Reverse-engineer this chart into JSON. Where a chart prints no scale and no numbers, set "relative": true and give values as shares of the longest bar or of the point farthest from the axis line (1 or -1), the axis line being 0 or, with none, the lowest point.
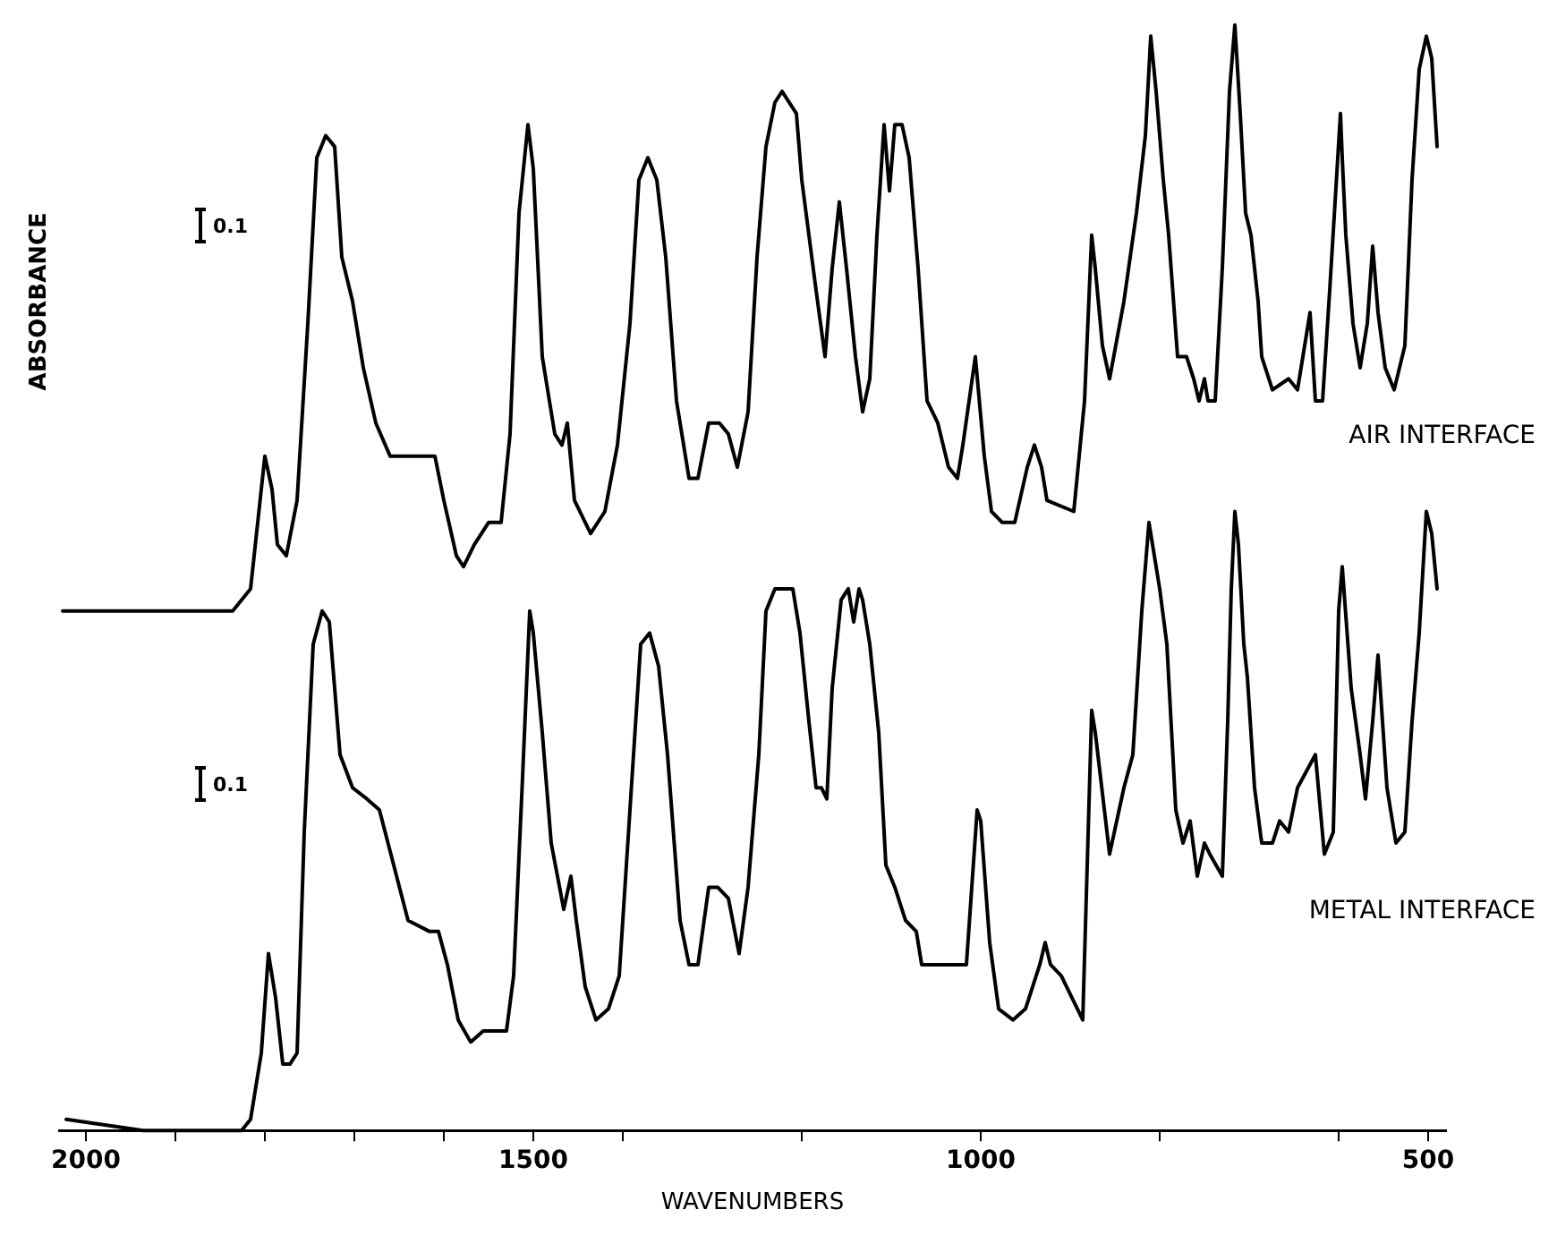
{
  "chart_data": {
    "type": "line",
    "xlabel": "WAVENUMBERS",
    "ylabel": "ABSORBANCE",
    "relative": true,
    "legend": false,
    "grid": false,
    "marker": "none",
    "line_style": "solid",
    "annotations": [
      "0.1",
      "0.1"
    ],
    "xlim": [
      2030,
      480
    ],
    "xticks": [
      2000,
      {
        "value": 1900,
        "label": null
      },
      {
        "value": 1800,
        "label": null
      },
      {
        "value": 1700,
        "label": null
      },
      {
        "value": 1600,
        "label": null
      },
      1500,
      {
        "value": 1400,
        "label": null
      },
      {
        "value": 1200,
        "label": null
      },
      1000,
      {
        "value": 800,
        "label": null
      },
      {
        "value": 600,
        "label": null
      },
      500
    ],
    "series": [
      {
        "name": "AIR INTERFACE",
        "color": "#000000",
        "x": [
          2026,
          1936,
          1836,
          1816,
          1800,
          1792,
          1786,
          1776,
          1764,
          1752,
          1742,
          1732,
          1722,
          1714,
          1702,
          1690,
          1676,
          1660,
          1610,
          1600,
          1586,
          1578,
          1566,
          1550,
          1536,
          1526,
          1516,
          1506,
          1500,
          1490,
          1476,
          1468,
          1462,
          1454,
          1436,
          1420,
          1406,
          1392,
          1382,
          1372,
          1362,
          1352,
          1340,
          1326,
          1316,
          1304,
          1292,
          1282,
          1272,
          1260,
          1250,
          1240,
          1230,
          1222,
          1206,
          1200,
          1192,
          1184,
          1174,
          1166,
          1158,
          1150,
          1140,
          1132,
          1124,
          1116,
          1108,
          1102,
          1096,
          1088,
          1080,
          1070,
          1060,
          1048,
          1036,
          1026,
          1020,
          1006,
          996,
          988,
          976,
          962,
          948,
          940,
          932,
          926,
          896,
          884,
          876,
          872,
          864,
          856,
          840,
          826,
          816,
          810,
          804,
          796,
          790,
          780,
          770,
          762,
          756,
          750,
          746,
          738,
          730,
          722,
          716,
          710,
          704,
          698,
          690,
          686,
          674,
          656,
          646,
          640,
          632,
          626,
          618,
          610,
          604,
          598,
          596,
          592,
          584,
          576,
          568,
          562,
          556,
          548,
          538,
          526,
          518,
          510,
          502,
          496,
          490
        ],
        "values": [
          0.47,
          0.47,
          0.47,
          0.49,
          0.61,
          0.58,
          0.53,
          0.52,
          0.57,
          0.73,
          0.88,
          0.9,
          0.89,
          0.79,
          0.75,
          0.69,
          0.64,
          0.61,
          0.61,
          0.57,
          0.52,
          0.51,
          0.53,
          0.55,
          0.55,
          0.63,
          0.83,
          0.91,
          0.87,
          0.7,
          0.63,
          0.62,
          0.64,
          0.57,
          0.54,
          0.56,
          0.62,
          0.73,
          0.86,
          0.88,
          0.86,
          0.79,
          0.66,
          0.59,
          0.59,
          0.64,
          0.64,
          0.63,
          0.6,
          0.65,
          0.79,
          0.89,
          0.93,
          0.94,
          0.92,
          0.86,
          0.81,
          0.76,
          0.7,
          0.78,
          0.84,
          0.78,
          0.7,
          0.65,
          0.68,
          0.81,
          0.91,
          0.85,
          0.91,
          0.91,
          0.88,
          0.78,
          0.66,
          0.64,
          0.6,
          0.59,
          0.62,
          0.7,
          0.61,
          0.56,
          0.55,
          0.55,
          0.6,
          0.62,
          0.6,
          0.57,
          0.56,
          0.66,
          0.81,
          0.78,
          0.71,
          0.68,
          0.75,
          0.83,
          0.9,
          0.99,
          0.94,
          0.86,
          0.81,
          0.7,
          0.7,
          0.68,
          0.66,
          0.68,
          0.66,
          0.66,
          0.78,
          0.94,
          1.0,
          0.92,
          0.83,
          0.81,
          0.75,
          0.7,
          0.67,
          0.68,
          0.67,
          0.7,
          0.74,
          0.66,
          0.66,
          0.76,
          0.84,
          0.92,
          0.88,
          0.81,
          0.73,
          0.69,
          0.73,
          0.8,
          0.74,
          0.69,
          0.67,
          0.71,
          0.86,
          0.96,
          0.99,
          0.97,
          0.89
        ]
      },
      {
        "name": "METAL INTERFACE",
        "color": "#000000",
        "x": [
          2022,
          1936,
          1826,
          1816,
          1804,
          1796,
          1788,
          1780,
          1772,
          1764,
          1756,
          1746,
          1736,
          1728,
          1716,
          1702,
          1686,
          1672,
          1656,
          1640,
          1616,
          1606,
          1596,
          1584,
          1570,
          1556,
          1530,
          1522,
          1512,
          1504,
          1500,
          1490,
          1480,
          1466,
          1458,
          1452,
          1442,
          1430,
          1416,
          1404,
          1392,
          1380,
          1370,
          1360,
          1350,
          1336,
          1326,
          1316,
          1304,
          1294,
          1282,
          1270,
          1260,
          1248,
          1240,
          1230,
          1222,
          1210,
          1202,
          1192,
          1184,
          1178,
          1172,
          1166,
          1156,
          1148,
          1142,
          1136,
          1132,
          1124,
          1114,
          1106,
          1096,
          1084,
          1072,
          1066,
          1016,
          1004,
          1000,
          990,
          980,
          964,
          950,
          934,
          928,
          922,
          910,
          886,
          876,
          872,
          856,
          840,
          830,
          820,
          812,
          800,
          792,
          782,
          774,
          766,
          758,
          750,
          744,
          730,
          724,
          720,
          716,
          712,
          706,
          702,
          694,
          686,
          674,
          666,
          656,
          646,
          626,
          616,
          606,
          600,
          596,
          586,
          576,
          570,
          562,
          556,
          546,
          536,
          526,
          518,
          510,
          502,
          496,
          490
        ],
        "values": [
          0.01,
          0.0,
          0.0,
          0.01,
          0.07,
          0.16,
          0.12,
          0.06,
          0.06,
          0.07,
          0.27,
          0.44,
          0.47,
          0.46,
          0.34,
          0.31,
          0.3,
          0.29,
          0.24,
          0.19,
          0.18,
          0.18,
          0.15,
          0.1,
          0.08,
          0.09,
          0.09,
          0.14,
          0.32,
          0.47,
          0.45,
          0.36,
          0.26,
          0.2,
          0.23,
          0.19,
          0.13,
          0.1,
          0.11,
          0.14,
          0.29,
          0.44,
          0.45,
          0.42,
          0.34,
          0.19,
          0.15,
          0.15,
          0.22,
          0.22,
          0.21,
          0.16,
          0.22,
          0.34,
          0.47,
          0.49,
          0.49,
          0.49,
          0.45,
          0.37,
          0.31,
          0.31,
          0.3,
          0.4,
          0.48,
          0.49,
          0.46,
          0.49,
          0.48,
          0.44,
          0.36,
          0.24,
          0.22,
          0.19,
          0.18,
          0.15,
          0.15,
          0.29,
          0.28,
          0.17,
          0.11,
          0.1,
          0.11,
          0.15,
          0.17,
          0.15,
          0.14,
          0.1,
          0.38,
          0.36,
          0.25,
          0.31,
          0.34,
          0.47,
          0.55,
          0.49,
          0.44,
          0.29,
          0.26,
          0.28,
          0.23,
          0.26,
          0.25,
          0.23,
          0.37,
          0.49,
          0.56,
          0.53,
          0.44,
          0.41,
          0.31,
          0.26,
          0.26,
          0.28,
          0.27,
          0.31,
          0.34,
          0.25,
          0.27,
          0.47,
          0.51,
          0.4,
          0.34,
          0.3,
          0.37,
          0.43,
          0.31,
          0.26,
          0.27,
          0.37,
          0.45,
          0.56,
          0.54,
          0.49
        ]
      }
    ]
  }
}
